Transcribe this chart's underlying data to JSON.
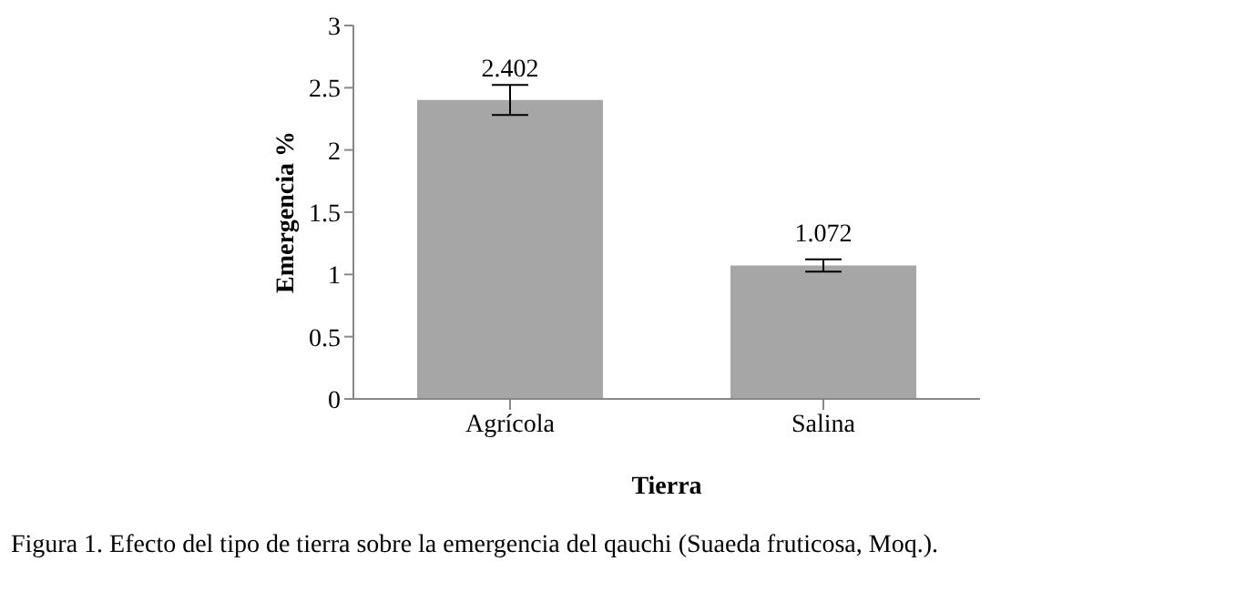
{
  "chart_data": {
    "type": "bar",
    "xlabel": "Tierra",
    "ylabel": "Emergencia %",
    "categories": [
      "Agrícola",
      "Salina"
    ],
    "series": [
      {
        "color": "#a6a6a6",
        "values": [
          2.402,
          1.072
        ],
        "errors": [
          0.12,
          0.05
        ]
      }
    ],
    "data_labels": true,
    "ylim": [
      0,
      3
    ],
    "yticks": [
      0,
      0.5,
      1,
      1.5,
      2,
      2.5,
      3
    ],
    "grid": false,
    "legend": false,
    "annotations": [
      "Figura 1. Efecto del tipo de tierra sobre la emergencia del qauchi (Suaeda fruticosa, Moq.)."
    ]
  }
}
